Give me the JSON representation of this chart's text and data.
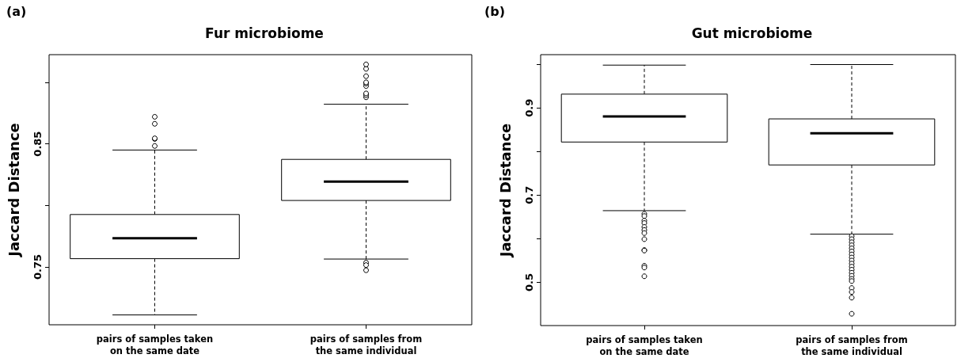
{
  "chart_data": [
    {
      "type": "box",
      "title": "Fur microbiome",
      "ylabel": "Jaccard Distance",
      "annotations": [
        "(a)"
      ],
      "categories": [
        "pairs of samples taken\non the same date",
        "pairs of samples from\nthe same individual"
      ],
      "color": "#000000",
      "boxes": [
        {
          "low": 0.711,
          "q1": 0.7567,
          "median": 0.7733,
          "q3": 0.7926,
          "high": 0.845,
          "outliers": [
            0.8483,
            0.854,
            0.8545,
            0.8663,
            0.872
          ]
        },
        {
          "low": 0.7564,
          "q1": 0.804,
          "median": 0.8193,
          "q3": 0.8374,
          "high": 0.8822,
          "outliers": [
            0.8879,
            0.8896,
            0.891,
            0.897,
            0.899,
            0.9,
            0.905,
            0.911,
            0.9146,
            0.7535,
            0.7515,
            0.7473
          ]
        }
      ],
      "ylim": [
        0.703,
        0.9225
      ],
      "yticks": [
        0.75,
        {
          "value": 0.8,
          "label": null
        },
        0.85,
        {
          "value": 0.9,
          "label": null
        }
      ],
      "grid": false
    },
    {
      "type": "box",
      "title": "Gut microbiome",
      "ylabel": "Jaccard Distance",
      "annotations": [
        "(b)"
      ],
      "categories": [
        "pairs of samples taken\non the same date",
        "pairs of samples from\nthe same individual"
      ],
      "color": "#000000",
      "boxes": [
        {
          "low": 0.6644,
          "q1": 0.8217,
          "median": 0.8804,
          "q3": 0.9315,
          "high": 0.998,
          "outliers": [
            0.657,
            0.652,
            0.6416,
            0.636,
            0.627,
            0.62,
            0.613,
            0.599,
            0.574,
            0.573,
            0.538,
            0.534,
            0.514
          ]
        },
        {
          "low": 0.6105,
          "q1": 0.7692,
          "median": 0.842,
          "q3": 0.8748,
          "high": 0.9993,
          "outliers": [
            0.606,
            0.599,
            0.592,
            0.585,
            0.578,
            0.571,
            0.564,
            0.557,
            0.55,
            0.543,
            0.536,
            0.529,
            0.522,
            0.515,
            0.508,
            0.503,
            0.487,
            0.478,
            0.465,
            0.428
          ]
        }
      ],
      "ylim": [
        0.401,
        1.022
      ],
      "yticks": [
        0.5,
        {
          "value": 0.6,
          "label": null
        },
        0.7,
        {
          "value": 0.8,
          "label": null
        },
        0.9,
        {
          "value": 1.0,
          "label": null
        }
      ],
      "grid": false
    }
  ]
}
